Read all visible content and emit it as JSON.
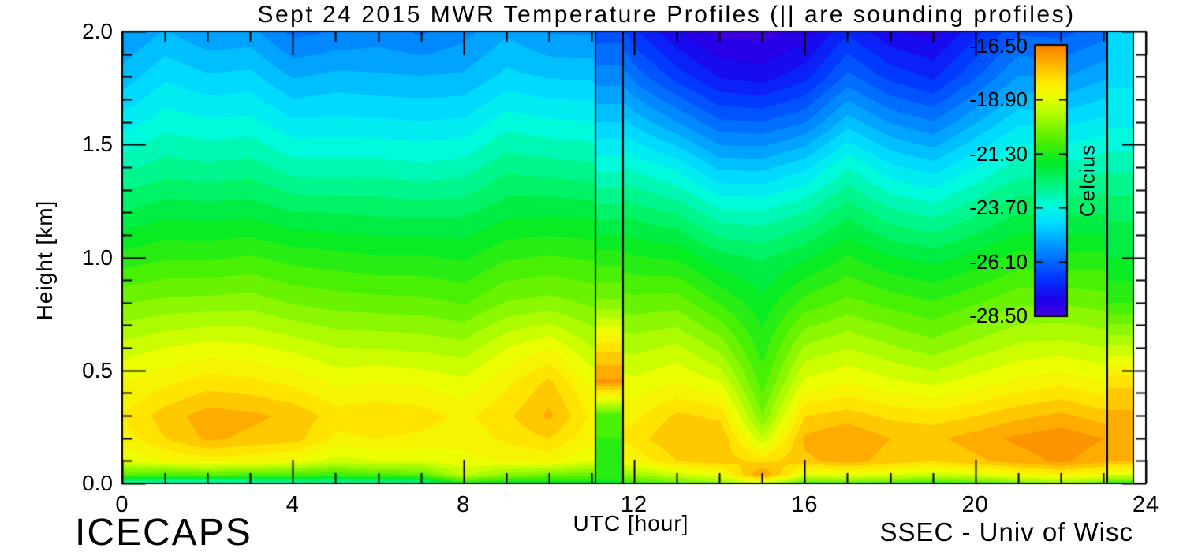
{
  "header": {
    "title": "Sept 24 2015 MWR Temperature Profiles (|| are sounding profiles)"
  },
  "footer": {
    "project": "ICECAPS",
    "credit": "SSEC - Univ of Wisc"
  },
  "axes": {
    "x": {
      "label": "UTC [hour]",
      "range": [
        0,
        24
      ],
      "major_tick_values": [
        0,
        4,
        8,
        12,
        16,
        20,
        24
      ],
      "tick_labels": [
        "0",
        "4",
        "8",
        "12",
        "16",
        "20",
        "24"
      ],
      "minor_step": 1
    },
    "y": {
      "label": "Height [km]",
      "range": [
        0.0,
        2.0
      ],
      "major_tick_values": [
        0.0,
        0.5,
        1.0,
        1.5,
        2.0
      ],
      "tick_labels": [
        "0.0",
        "0.5",
        "1.0",
        "1.5",
        "2.0"
      ],
      "minor_step": 0.1
    }
  },
  "colorbar": {
    "title": "Celcius",
    "range": [
      -28.5,
      -16.5
    ],
    "tick_values": [
      -16.5,
      -18.9,
      -21.3,
      -23.7,
      -26.1,
      -28.5
    ],
    "tick_labels": [
      "-16.50",
      "-18.90",
      "-21.30",
      "-23.70",
      "-26.10",
      "-28.50"
    ],
    "border_color": "#000000"
  },
  "chart_data": {
    "type": "heatmap",
    "title": "Sept 24 2015 MWR Temperature Profiles (|| are sounding profiles)",
    "xlabel": "UTC [hour]",
    "ylabel": "Height [km]",
    "value_label": "Celcius",
    "x_hours": [
      0,
      1,
      2,
      3,
      4,
      5,
      6,
      7,
      8,
      9,
      10,
      11,
      12,
      13,
      14,
      15,
      16,
      17,
      18,
      19,
      20,
      21,
      22,
      23,
      24
    ],
    "heights_km": [
      0.0,
      0.04,
      0.1,
      0.2,
      0.3,
      0.45,
      0.6,
      0.8,
      1.0,
      1.2,
      1.4,
      1.6,
      1.8,
      2.0
    ],
    "temperature_c": [
      [
        -23.4,
        -20.6,
        -18.9,
        -18.4,
        -18.2,
        -18.6,
        -19.2,
        -20.2,
        -21.2,
        -22.1,
        -23.0,
        -23.9,
        -24.7,
        -25.3
      ],
      [
        -23.6,
        -20.8,
        -18.6,
        -17.8,
        -17.6,
        -18.3,
        -19.0,
        -20.1,
        -21.1,
        -22.0,
        -22.9,
        -23.7,
        -24.4,
        -25.1
      ],
      [
        -23.8,
        -20.6,
        -18.4,
        -17.3,
        -17.2,
        -18.0,
        -18.8,
        -20.0,
        -21.0,
        -21.9,
        -22.8,
        -23.6,
        -24.4,
        -25.2
      ],
      [
        -23.6,
        -20.7,
        -18.5,
        -17.5,
        -17.3,
        -18.1,
        -18.9,
        -20.0,
        -21.0,
        -22.0,
        -22.9,
        -23.8,
        -24.6,
        -25.4
      ],
      [
        -23.5,
        -20.8,
        -18.7,
        -17.6,
        -17.5,
        -18.3,
        -19.1,
        -20.2,
        -21.1,
        -22.1,
        -23.1,
        -24.0,
        -24.9,
        -25.8
      ],
      [
        -23.3,
        -20.9,
        -19.2,
        -18.3,
        -18.0,
        -18.7,
        -19.4,
        -20.4,
        -21.3,
        -22.3,
        -23.3,
        -24.2,
        -25.0,
        -25.9
      ],
      [
        -23.4,
        -20.7,
        -19.0,
        -18.2,
        -17.9,
        -18.6,
        -19.4,
        -20.4,
        -21.3,
        -22.2,
        -23.1,
        -24.0,
        -24.8,
        -25.5
      ],
      [
        -23.2,
        -20.6,
        -19.0,
        -18.3,
        -18.0,
        -18.7,
        -19.5,
        -20.5,
        -21.4,
        -22.4,
        -23.4,
        -24.3,
        -25.1,
        -26.0
      ],
      [
        -21.3,
        -19.3,
        -18.7,
        -18.5,
        -18.3,
        -18.9,
        -19.6,
        -20.6,
        -21.4,
        -22.2,
        -23.1,
        -24.0,
        -24.8,
        -25.4
      ],
      [
        -21.8,
        -20.0,
        -18.6,
        -18.1,
        -17.9,
        -18.3,
        -19.0,
        -20.2,
        -21.1,
        -22.0,
        -22.8,
        -23.7,
        -24.6,
        -25.2
      ],
      [
        -22.0,
        -20.3,
        -18.5,
        -17.8,
        -17.3,
        -17.7,
        -18.6,
        -20.0,
        -20.9,
        -21.8,
        -22.7,
        -23.6,
        -24.5,
        -25.3
      ],
      [
        -21.8,
        -20.4,
        -19.0,
        -18.5,
        -18.3,
        -18.7,
        -19.4,
        -20.3,
        -21.1,
        -22.0,
        -23.0,
        -23.9,
        -24.8,
        -25.6
      ],
      [
        -21.0,
        -19.8,
        -18.5,
        -18.0,
        -18.3,
        -18.9,
        -19.5,
        -20.4,
        -21.3,
        -22.3,
        -23.4,
        -24.6,
        -25.8,
        -26.8
      ],
      [
        -20.5,
        -19.2,
        -17.8,
        -17.4,
        -17.7,
        -18.6,
        -19.3,
        -20.4,
        -21.5,
        -22.7,
        -24.0,
        -25.5,
        -26.9,
        -27.9
      ],
      [
        -20.0,
        -18.8,
        -17.6,
        -17.4,
        -17.9,
        -19.0,
        -19.9,
        -21.0,
        -22.0,
        -23.2,
        -24.6,
        -26.0,
        -27.3,
        -28.2
      ],
      [
        -19.3,
        -16.9,
        -17.9,
        -19.3,
        -20.2,
        -20.8,
        -21.2,
        -21.7,
        -22.3,
        -23.4,
        -24.8,
        -26.3,
        -27.7,
        -28.5
      ],
      [
        -20.8,
        -19.0,
        -17.5,
        -17.3,
        -17.8,
        -18.9,
        -19.7,
        -20.8,
        -21.8,
        -22.9,
        -24.2,
        -25.7,
        -27.0,
        -27.9
      ],
      [
        -20.5,
        -18.8,
        -17.2,
        -17.0,
        -17.6,
        -18.6,
        -19.4,
        -20.5,
        -21.4,
        -22.4,
        -23.5,
        -24.9,
        -26.2,
        -27.2
      ],
      [
        -20.8,
        -19.0,
        -17.6,
        -17.4,
        -17.9,
        -18.9,
        -19.7,
        -20.7,
        -21.7,
        -22.8,
        -24.0,
        -25.3,
        -26.6,
        -27.6
      ],
      [
        -21.0,
        -19.2,
        -17.8,
        -17.5,
        -18.0,
        -19.1,
        -20.0,
        -21.0,
        -22.0,
        -23.2,
        -24.5,
        -25.9,
        -27.2,
        -28.1
      ],
      [
        -20.8,
        -19.0,
        -17.5,
        -17.2,
        -17.8,
        -18.8,
        -19.6,
        -20.6,
        -21.6,
        -22.6,
        -23.7,
        -24.9,
        -26.1,
        -27.0
      ],
      [
        -20.3,
        -18.6,
        -17.2,
        -16.9,
        -17.5,
        -18.5,
        -19.3,
        -20.3,
        -21.3,
        -22.3,
        -23.3,
        -24.4,
        -25.5,
        -26.4
      ],
      [
        -20.0,
        -18.3,
        -16.9,
        -16.7,
        -17.3,
        -18.3,
        -19.2,
        -20.2,
        -21.2,
        -22.2,
        -23.2,
        -24.2,
        -25.3,
        -26.2
      ],
      [
        -20.3,
        -18.6,
        -17.3,
        -17.0,
        -17.6,
        -18.6,
        -19.4,
        -20.4,
        -21.3,
        -22.3,
        -23.2,
        -24.2,
        -25.2,
        -26.1
      ],
      [
        -20.5,
        -18.8,
        -17.5,
        -17.2,
        -17.8,
        -18.8,
        -19.5,
        -20.5,
        -21.4,
        -22.4,
        -23.4,
        -24.4,
        -25.4,
        -26.3
      ]
    ],
    "data_end_hour": 23.7,
    "soundings": [
      {
        "start_hour": 11.1,
        "end_hour": 11.75,
        "profile_c": [
          -21.5,
          -21.3,
          -21.2,
          -21.0,
          -20.8,
          -16.9,
          -17.9,
          -20.1,
          -21.2,
          -22.4,
          -23.5,
          -24.6,
          -25.6,
          -26.4
        ]
      },
      {
        "start_hour": 23.1,
        "end_hour": 23.7,
        "profile_c": [
          -21.0,
          -19.0,
          -17.4,
          -17.1,
          -17.3,
          -17.9,
          -19.3,
          -21.0,
          -21.8,
          -22.3,
          -23.1,
          -23.9,
          -24.3,
          -24.6
        ]
      }
    ],
    "sounding_line_color": "#000000",
    "contour_interval_c": 0.4,
    "zigzag_amplitude_c": 0.13,
    "colormap": [
      {
        "t": -29.0,
        "rgb": [
          90,
          0,
          215
        ]
      },
      {
        "t": -27.8,
        "rgb": [
          30,
          0,
          235
        ]
      },
      {
        "t": -26.9,
        "rgb": [
          0,
          50,
          255
        ]
      },
      {
        "t": -26.0,
        "rgb": [
          0,
          110,
          255
        ]
      },
      {
        "t": -25.1,
        "rgb": [
          0,
          170,
          255
        ]
      },
      {
        "t": -24.3,
        "rgb": [
          0,
          225,
          255
        ]
      },
      {
        "t": -23.6,
        "rgb": [
          0,
          250,
          220
        ]
      },
      {
        "t": -22.7,
        "rgb": [
          0,
          245,
          130
        ]
      },
      {
        "t": -21.7,
        "rgb": [
          0,
          235,
          40
        ]
      },
      {
        "t": -20.7,
        "rgb": [
          80,
          240,
          0
        ]
      },
      {
        "t": -19.7,
        "rgb": [
          165,
          250,
          0
        ]
      },
      {
        "t": -18.8,
        "rgb": [
          235,
          255,
          0
        ]
      },
      {
        "t": -18.1,
        "rgb": [
          255,
          235,
          0
        ]
      },
      {
        "t": -17.3,
        "rgb": [
          255,
          180,
          0
        ]
      },
      {
        "t": -16.5,
        "rgb": [
          250,
          128,
          0
        ]
      },
      {
        "t": -16.0,
        "rgb": [
          245,
          112,
          0
        ]
      }
    ],
    "axis_color": "#000000",
    "background_color": "#ffffff",
    "legend_position": "overlay-right",
    "grid": false
  }
}
